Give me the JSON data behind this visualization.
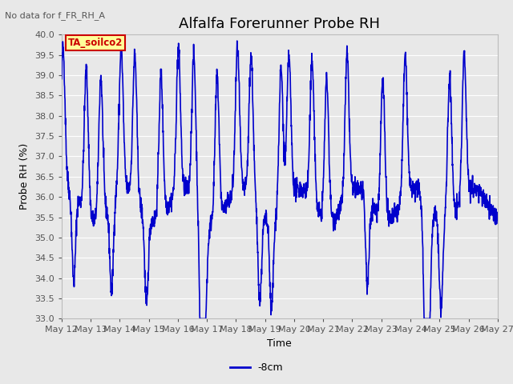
{
  "title": "Alfalfa Forerunner Probe RH",
  "no_data_label": "No data for f_FR_RH_A",
  "ylabel": "Probe RH (%)",
  "xlabel": "Time",
  "legend_label": "-8cm",
  "legend_color": "#0000cc",
  "line_color": "#0000cc",
  "line_width": 1.2,
  "ylim": [
    33.0,
    40.0
  ],
  "yticks": [
    33.0,
    33.5,
    34.0,
    34.5,
    35.0,
    35.5,
    36.0,
    36.5,
    37.0,
    37.5,
    38.0,
    38.5,
    39.0,
    39.5,
    40.0
  ],
  "fig_bg_color": "#e8e8e8",
  "plot_bg_color": "#e8e8e8",
  "legend_box_color": "#ffff99",
  "legend_box_edge": "#cc0000",
  "legend_text_color": "#cc0000",
  "x_tick_days": [
    12,
    13,
    14,
    15,
    16,
    17,
    18,
    19,
    20,
    21,
    22,
    23,
    24,
    25,
    26,
    27
  ],
  "x_tick_labels": [
    "May 12",
    "May 13",
    "May 14",
    "May 15",
    "May 16",
    "May 17",
    "May 18",
    "May 19",
    "May 20",
    "May 21",
    "May 22",
    "May 23",
    "May 24",
    "May 25",
    "May 26",
    "May 27"
  ],
  "grid_color": "#ffffff",
  "title_fontsize": 13,
  "label_fontsize": 9,
  "tick_fontsize": 8,
  "no_data_fontsize": 8,
  "legend_fontsize": 9
}
